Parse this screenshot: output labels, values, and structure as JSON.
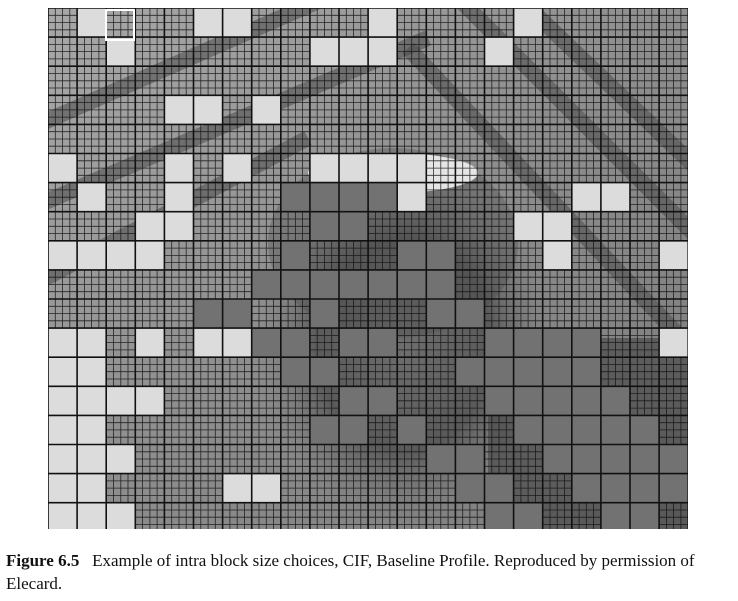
{
  "figure": {
    "label": "Figure 6.5",
    "caption": "Example of intra block size choices, CIF, Baseline Profile. Reproduced by permission of Elecard."
  },
  "colors": {
    "background": "#ffffff",
    "grid_line": "#111111",
    "caption_text": "#111111"
  }
}
